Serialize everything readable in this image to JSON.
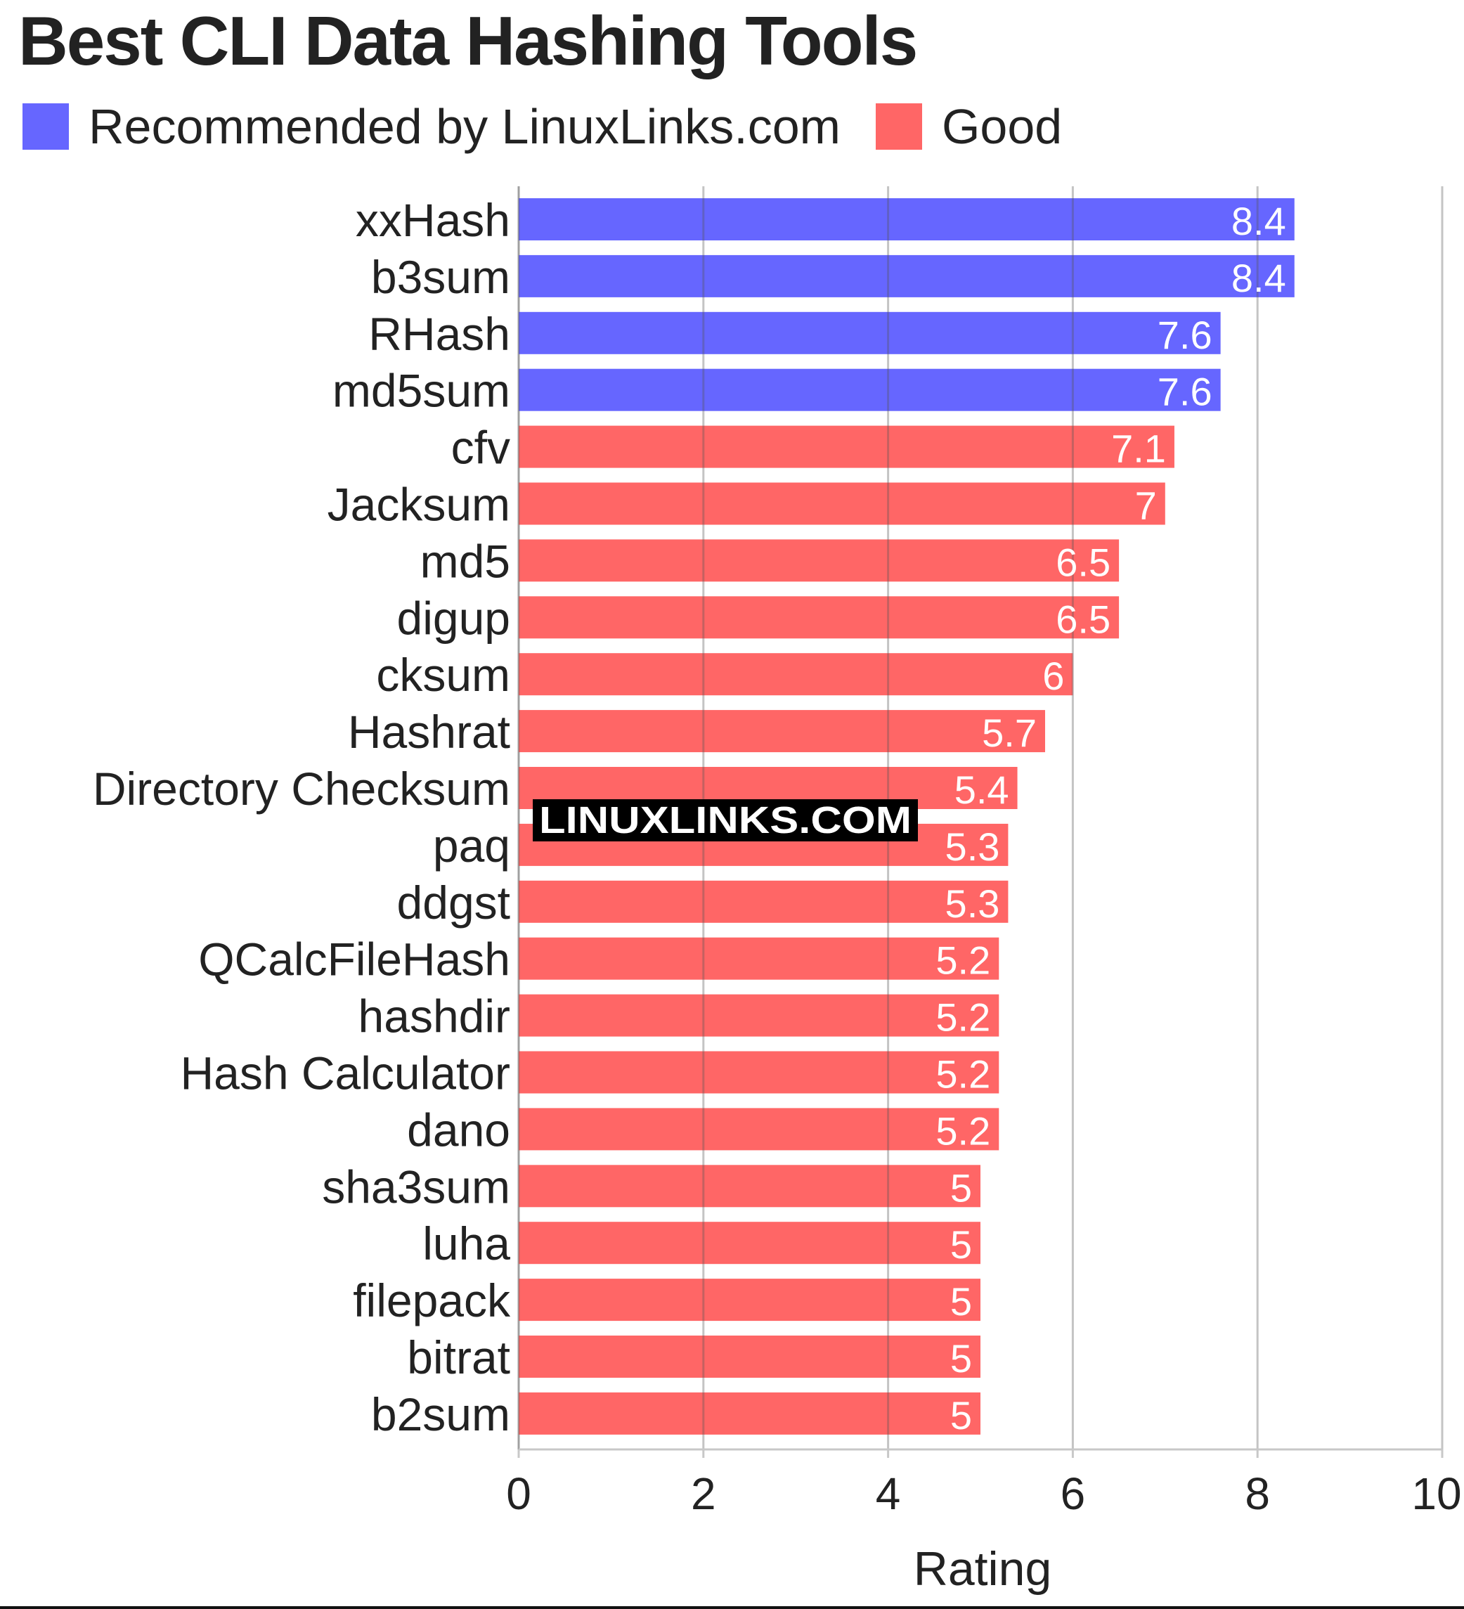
{
  "chart_data": {
    "type": "bar",
    "orientation": "horizontal",
    "title": "Best CLI Data Hashing Tools",
    "xlabel": "Rating",
    "ylabel": "",
    "xlim": [
      0,
      10
    ],
    "x_ticks": [
      "0",
      "2",
      "4",
      "6",
      "8",
      "10"
    ],
    "grid": true,
    "legend_position": "top-left",
    "legend": [
      {
        "label": "Recommended by LinuxLinks.com",
        "color": "#6666ff"
      },
      {
        "label": "Good",
        "color": "#ff6666"
      }
    ],
    "categories": [
      "xxHash",
      "b3sum",
      "RHash",
      "md5sum",
      "cfv",
      "Jacksum",
      "md5",
      "digup",
      "cksum",
      "Hashrat",
      "Directory Checksum",
      "paq",
      "ddgst",
      "QCalcFileHash",
      "hashdir",
      "Hash Calculator",
      "dano",
      "sha3sum",
      "luha",
      "filepack",
      "bitrat",
      "b2sum"
    ],
    "values": [
      8.4,
      8.4,
      7.6,
      7.6,
      7.1,
      7,
      6.5,
      6.5,
      6,
      5.7,
      5.4,
      5.3,
      5.3,
      5.2,
      5.2,
      5.2,
      5.2,
      5,
      5,
      5,
      5,
      5
    ],
    "value_labels": [
      "8.4",
      "8.4",
      "7.6",
      "7.6",
      "7.1",
      "7",
      "6.5",
      "6.5",
      "6",
      "5.7",
      "5.4",
      "5.3",
      "5.3",
      "5.2",
      "5.2",
      "5.2",
      "5.2",
      "5",
      "5",
      "5",
      "5",
      "5"
    ],
    "groups": [
      0,
      0,
      0,
      0,
      1,
      1,
      1,
      1,
      1,
      1,
      1,
      1,
      1,
      1,
      1,
      1,
      1,
      1,
      1,
      1,
      1,
      1
    ]
  },
  "watermark": "LINUXLINKS.COM",
  "colors": {
    "grid": "#c8c8c8",
    "axis": "#c8c8c8",
    "text": "#222222",
    "bar_label": "#ffffff"
  }
}
